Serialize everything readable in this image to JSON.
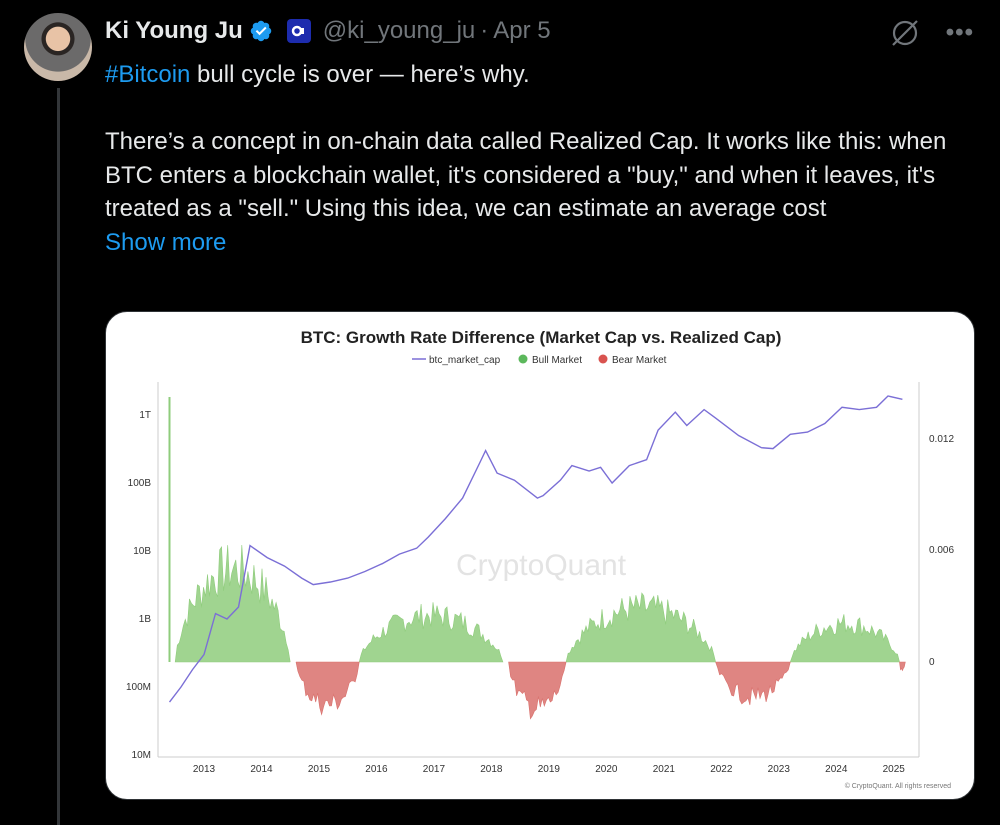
{
  "author": {
    "name": "Ki Young Ju",
    "handle": "@ki_young_ju",
    "separator": "·",
    "date": "Apr 5"
  },
  "tweet": {
    "hashtag": "#Bitcoin",
    "line1_rest": " bull cycle is over — here’s why.",
    "body": "There’s a concept in on-chain data called Realized Cap. It works like this: when BTC enters a blockchain wallet, it's considered a \"buy,\" and when it leaves, it's treated as a \"sell.\" Using this idea, we can estimate an average cost",
    "show_more": "Show more"
  },
  "icons": {
    "verified": "verified-badge-icon",
    "affiliate": "affiliate-badge-icon",
    "grok": "grok-icon",
    "more": "more-icon"
  },
  "colors": {
    "link": "#1d9bf0",
    "verified": "#1d9bf0",
    "line": "#7b6fd6",
    "bull": "#8fcc7c",
    "bear": "#d9706c"
  },
  "chart_data": {
    "type": "line",
    "title": "BTC: Growth Rate Difference (Market Cap vs. Realized Cap)",
    "legend": [
      "btc_market_cap",
      "Bull Market",
      "Bear Market"
    ],
    "watermark": "CryptoQuant",
    "copyright": "© CryptoQuant. All rights reserved",
    "x_ticks": [
      "2013",
      "2014",
      "2015",
      "2016",
      "2017",
      "2018",
      "2019",
      "2020",
      "2021",
      "2022",
      "2023",
      "2024",
      "2025"
    ],
    "left_axis": {
      "scale": "log",
      "ticks": [
        "1T",
        "100B",
        "10B",
        "1B",
        "100M",
        "10M"
      ]
    },
    "right_axis": {
      "ticks": [
        "0.012",
        "0.006",
        "0"
      ]
    },
    "series": [
      {
        "name": "btc_market_cap",
        "x": [
          2012.5,
          2012.7,
          2012.9,
          2013.1,
          2013.3,
          2013.5,
          2013.7,
          2013.9,
          2014.2,
          2014.5,
          2014.8,
          2015.0,
          2015.3,
          2015.6,
          2015.9,
          2016.2,
          2016.5,
          2016.8,
          2017.0,
          2017.3,
          2017.6,
          2017.9,
          2018.0,
          2018.2,
          2018.5,
          2018.9,
          2019.0,
          2019.3,
          2019.5,
          2019.8,
          2020.0,
          2020.2,
          2020.5,
          2020.8,
          2021.0,
          2021.3,
          2021.5,
          2021.8,
          2022.0,
          2022.4,
          2022.8,
          2023.0,
          2023.3,
          2023.6,
          2023.9,
          2024.2,
          2024.5,
          2024.8,
          2025.0,
          2025.25
        ],
        "y": [
          0.06,
          0.1,
          0.18,
          0.3,
          1.2,
          1.0,
          1.5,
          12,
          8,
          6,
          4,
          3.2,
          3.5,
          4,
          5,
          6.5,
          9,
          11,
          16,
          30,
          60,
          200,
          300,
          140,
          110,
          60,
          65,
          110,
          180,
          150,
          170,
          100,
          180,
          220,
          600,
          1100,
          700,
          1200,
          900,
          500,
          330,
          320,
          520,
          560,
          750,
          1300,
          1200,
          1300,
          1900,
          1700
        ]
      },
      {
        "name": "Bull Market",
        "ranges": [
          [
            2012.6,
            2014.6
          ],
          [
            2015.8,
            2018.3
          ],
          [
            2019.4,
            2022.0
          ],
          [
            2023.3,
            2025.2
          ]
        ]
      },
      {
        "name": "Bear Market",
        "ranges": [
          [
            2014.7,
            2015.8
          ],
          [
            2018.4,
            2019.4
          ],
          [
            2022.0,
            2023.3
          ],
          [
            2025.2,
            2025.3
          ]
        ]
      }
    ]
  }
}
